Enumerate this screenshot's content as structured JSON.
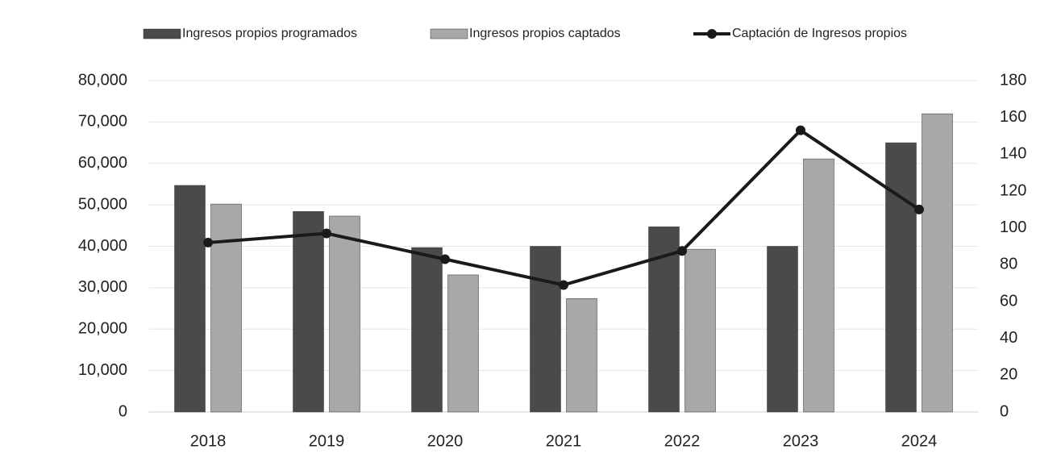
{
  "chart_data": {
    "type": "bar",
    "categories": [
      "2018",
      "2019",
      "2020",
      "2021",
      "2022",
      "2023",
      "2024"
    ],
    "series": [
      {
        "name": "Ingresos propios programados",
        "color": "#4a4a4a",
        "values": [
          54700,
          48400,
          39700,
          40000,
          44700,
          40000,
          65000
        ]
      },
      {
        "name": "Ingresos propios captados",
        "color": "#a8a8a8",
        "values": [
          50200,
          47300,
          33100,
          27400,
          39300,
          61100,
          72000
        ]
      },
      {
        "name": "Captación de Ingresos propios",
        "color": "#1a1a1a",
        "type": "line",
        "axis": "y2",
        "values": [
          92,
          97,
          83,
          69,
          87.5,
          153,
          110
        ]
      }
    ],
    "ylim": [
      0,
      80000
    ],
    "yticks": [
      0,
      {
        "value": 10000,
        "label": "10,000"
      },
      {
        "value": 20000,
        "label": "20,000"
      },
      {
        "value": 30000,
        "label": "30,000"
      },
      {
        "value": 40000,
        "label": "40,000"
      },
      {
        "value": 50000,
        "label": "50,000"
      },
      {
        "value": 60000,
        "label": "60,000"
      },
      {
        "value": 70000,
        "label": "70,000"
      },
      {
        "value": 80000,
        "label": "80,000"
      }
    ],
    "y2lim": [
      0,
      180
    ],
    "y2ticks": [
      0,
      20,
      40,
      60,
      80,
      100,
      120,
      140,
      160,
      180
    ],
    "grid": true,
    "legend": "top"
  }
}
